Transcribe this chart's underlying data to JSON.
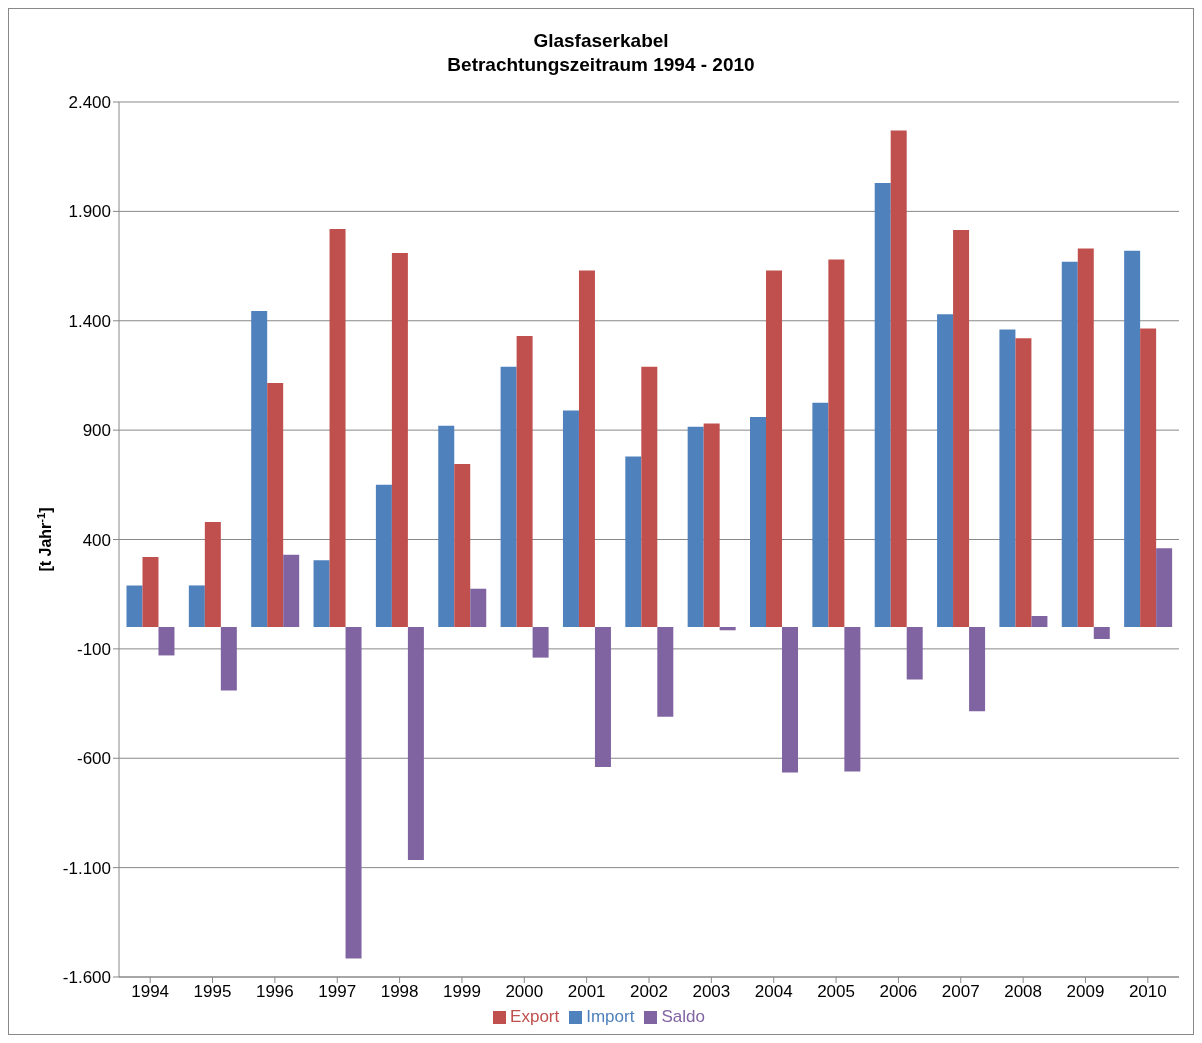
{
  "chart_data": {
    "type": "bar",
    "title": "Glasfaserkabel",
    "subtitle": "Betrachtungszeitraum 1994 - 2010",
    "ylabel": "[t Jahr$^{-1}$]",
    "categories": [
      "1994",
      "1995",
      "1996",
      "1997",
      "1998",
      "1999",
      "2000",
      "2001",
      "2002",
      "2003",
      "2004",
      "2005",
      "2006",
      "2007",
      "2008",
      "2009",
      "2010"
    ],
    "series": [
      {
        "name": "Import",
        "color": "#4f81bd",
        "values": [
          190,
          190,
          1445,
          305,
          650,
          920,
          1190,
          990,
          780,
          915,
          960,
          1025,
          2030,
          1430,
          1360,
          1670,
          1720
        ]
      },
      {
        "name": "Export",
        "color": "#c0504d",
        "values": [
          320,
          480,
          1115,
          1820,
          1710,
          745,
          1330,
          1630,
          1190,
          930,
          1630,
          1680,
          2270,
          1815,
          1320,
          1730,
          1365
        ]
      },
      {
        "name": "Saldo",
        "color": "#8064a2",
        "values": [
          -130,
          -290,
          330,
          -1515,
          -1065,
          175,
          -140,
          -640,
          -410,
          -15,
          -665,
          -660,
          -240,
          -385,
          50,
          -55,
          360
        ]
      }
    ],
    "ylim": [
      -1600,
      2400
    ],
    "yticks": [
      {
        "value": -1600,
        "label": "-1.600"
      },
      {
        "value": -1100,
        "label": "-1.100"
      },
      {
        "value": -600,
        "label": "-600"
      },
      {
        "value": -100,
        "label": "-100"
      },
      {
        "value": 400,
        "label": "400"
      },
      {
        "value": 900,
        "label": "900"
      },
      {
        "value": 1400,
        "label": "1.400"
      },
      {
        "value": 1900,
        "label": "1.900"
      },
      {
        "value": 2400,
        "label": "2.400"
      }
    ],
    "grid": "y",
    "legend": "bottom"
  }
}
